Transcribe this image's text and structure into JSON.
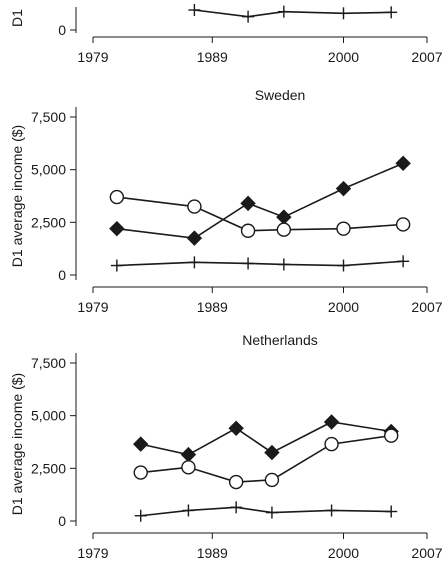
{
  "colors": {
    "ink": "#1a1a1a",
    "marker_fill_open": "#ffffff"
  },
  "chart_data": [
    {
      "type": "line",
      "title": "",
      "ylabel": "D1",
      "xlim": [
        1979,
        2007
      ],
      "x_ticks": [
        1979,
        1989,
        2000,
        2007
      ],
      "y_ticks": [
        {
          "value": 0,
          "label": "0"
        }
      ],
      "ylim": [
        0,
        1200
      ],
      "series": [
        {
          "marker": "plus",
          "x": [
            1987.5,
            1992,
            1995,
            2000,
            2004
          ],
          "y": [
            600,
            400,
            550,
            500,
            530
          ]
        }
      ]
    },
    {
      "type": "line",
      "title": "Sweden",
      "ylabel": "D1 average income ($)",
      "xlim": [
        1979,
        2007
      ],
      "x_ticks": [
        1979,
        1989,
        2000,
        2007
      ],
      "y_ticks": [
        {
          "value": 0,
          "label": "0"
        },
        {
          "value": 2500,
          "label": "2,500"
        },
        {
          "value": 5000,
          "label": "5,000"
        },
        {
          "value": 7500,
          "label": "7,500"
        }
      ],
      "ylim": [
        0,
        7500
      ],
      "series": [
        {
          "marker": "diamond",
          "x": [
            1981,
            1987.5,
            1992,
            1995,
            2000,
            2005
          ],
          "y": [
            2200,
            1750,
            3400,
            2750,
            4100,
            5300
          ]
        },
        {
          "marker": "circle",
          "x": [
            1981,
            1987.5,
            1992,
            1995,
            2000,
            2005
          ],
          "y": [
            3700,
            3250,
            2100,
            2150,
            2200,
            2400
          ]
        },
        {
          "marker": "plus",
          "x": [
            1981,
            1987.5,
            1992,
            1995,
            2000,
            2005
          ],
          "y": [
            450,
            600,
            550,
            500,
            450,
            650
          ]
        }
      ]
    },
    {
      "type": "line",
      "title": "Netherlands",
      "ylabel": "D1 average income ($)",
      "xlim": [
        1979,
        2007
      ],
      "x_ticks": [
        1979,
        1989,
        2000,
        2007
      ],
      "x_tick_labels": [
        "1979",
        "1989",
        "2000",
        "2007"
      ],
      "y_ticks": [
        {
          "value": 0,
          "label": "0"
        },
        {
          "value": 2500,
          "label": "2,500"
        },
        {
          "value": 5000,
          "label": "5,000"
        },
        {
          "value": 7500,
          "label": "7,500"
        }
      ],
      "ylim": [
        0,
        7500
      ],
      "series": [
        {
          "marker": "diamond",
          "x": [
            1983,
            1987,
            1991,
            1994,
            1999,
            2004
          ],
          "y": [
            3650,
            3150,
            4400,
            3250,
            4700,
            4250
          ]
        },
        {
          "marker": "circle",
          "x": [
            1983,
            1987,
            1991,
            1994,
            1999,
            2004
          ],
          "y": [
            2300,
            2550,
            1850,
            1950,
            3650,
            4050
          ]
        },
        {
          "marker": "plus",
          "x": [
            1983,
            1987,
            1991,
            1994,
            1999,
            2004
          ],
          "y": [
            250,
            500,
            650,
            400,
            500,
            450
          ]
        }
      ]
    }
  ]
}
